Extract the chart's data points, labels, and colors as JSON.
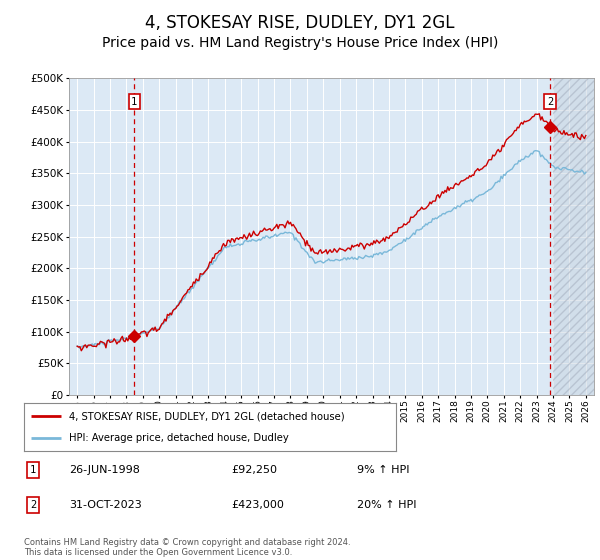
{
  "title": "4, STOKESAY RISE, DUDLEY, DY1 2GL",
  "subtitle": "Price paid vs. HM Land Registry's House Price Index (HPI)",
  "title_fontsize": 12,
  "subtitle_fontsize": 10,
  "fig_bg_color": "#ffffff",
  "plot_bg_color": "#dce9f5",
  "grid_color": "#ffffff",
  "ylim": [
    0,
    500000
  ],
  "yticks": [
    0,
    50000,
    100000,
    150000,
    200000,
    250000,
    300000,
    350000,
    400000,
    450000,
    500000
  ],
  "xlabel_years": [
    1995,
    1996,
    1997,
    1998,
    1999,
    2000,
    2001,
    2002,
    2003,
    2004,
    2005,
    2006,
    2007,
    2008,
    2009,
    2010,
    2011,
    2012,
    2013,
    2014,
    2015,
    2016,
    2017,
    2018,
    2019,
    2020,
    2021,
    2022,
    2023,
    2024,
    2025,
    2026
  ],
  "transaction1_x": 1998.48,
  "transaction1_y": 92250,
  "transaction1_label": "1",
  "transaction1_date": "26-JUN-1998",
  "transaction1_price": "£92,250",
  "transaction1_hpi": "9% ↑ HPI",
  "transaction2_x": 2023.83,
  "transaction2_y": 423000,
  "transaction2_label": "2",
  "transaction2_date": "31-OCT-2023",
  "transaction2_price": "£423,000",
  "transaction2_hpi": "20% ↑ HPI",
  "hpi_line_color": "#7ab8d9",
  "price_line_color": "#cc0000",
  "marker_color": "#cc0000",
  "dashed_vline_color": "#cc0000",
  "legend_line1": "4, STOKESAY RISE, DUDLEY, DY1 2GL (detached house)",
  "legend_line2": "HPI: Average price, detached house, Dudley",
  "footer_text": "Contains HM Land Registry data © Crown copyright and database right 2024.\nThis data is licensed under the Open Government Licence v3.0.",
  "hatch_start_x": 2024.0,
  "xlim_left": 1994.5,
  "xlim_right": 2026.5
}
